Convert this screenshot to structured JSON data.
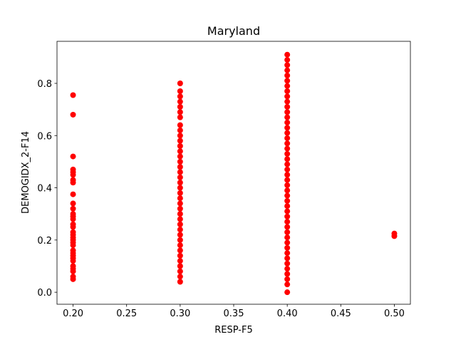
{
  "chart_data": {
    "type": "scatter",
    "title": "Maryland",
    "x_label": "RESP-F5",
    "y_label": "DEMOGIDX_2-F14",
    "color": "#ff0000",
    "x": [
      0.2,
      0.2,
      0.2,
      0.2,
      0.2,
      0.2,
      0.2,
      0.2,
      0.2,
      0.2,
      0.2,
      0.2,
      0.2,
      0.2,
      0.2,
      0.2,
      0.2,
      0.2,
      0.2,
      0.2,
      0.2,
      0.2,
      0.2,
      0.2,
      0.2,
      0.2,
      0.2,
      0.2,
      0.2,
      0.2,
      0.2,
      0.2,
      0.3,
      0.3,
      0.3,
      0.3,
      0.3,
      0.3,
      0.3,
      0.3,
      0.3,
      0.3,
      0.3,
      0.3,
      0.3,
      0.3,
      0.3,
      0.3,
      0.3,
      0.3,
      0.3,
      0.3,
      0.3,
      0.3,
      0.3,
      0.3,
      0.3,
      0.3,
      0.3,
      0.3,
      0.3,
      0.3,
      0.3,
      0.3,
      0.3,
      0.3,
      0.3,
      0.3,
      0.3,
      0.3,
      0.4,
      0.4,
      0.4,
      0.4,
      0.4,
      0.4,
      0.4,
      0.4,
      0.4,
      0.4,
      0.4,
      0.4,
      0.4,
      0.4,
      0.4,
      0.4,
      0.4,
      0.4,
      0.4,
      0.4,
      0.4,
      0.4,
      0.4,
      0.4,
      0.4,
      0.4,
      0.4,
      0.4,
      0.4,
      0.4,
      0.4,
      0.4,
      0.4,
      0.4,
      0.4,
      0.4,
      0.4,
      0.4,
      0.4,
      0.4,
      0.4,
      0.4,
      0.4,
      0.4,
      0.4,
      0.4,
      0.5,
      0.5
    ],
    "y": [
      0.755,
      0.68,
      0.52,
      0.47,
      0.46,
      0.45,
      0.43,
      0.42,
      0.375,
      0.34,
      0.32,
      0.3,
      0.29,
      0.28,
      0.26,
      0.25,
      0.23,
      0.22,
      0.21,
      0.2,
      0.19,
      0.18,
      0.16,
      0.15,
      0.14,
      0.13,
      0.12,
      0.1,
      0.09,
      0.08,
      0.06,
      0.05,
      0.8,
      0.77,
      0.75,
      0.73,
      0.71,
      0.69,
      0.67,
      0.64,
      0.62,
      0.6,
      0.58,
      0.56,
      0.54,
      0.52,
      0.5,
      0.48,
      0.46,
      0.44,
      0.42,
      0.4,
      0.38,
      0.36,
      0.34,
      0.32,
      0.3,
      0.28,
      0.26,
      0.24,
      0.22,
      0.2,
      0.18,
      0.16,
      0.14,
      0.12,
      0.1,
      0.08,
      0.06,
      0.04,
      0.91,
      0.89,
      0.87,
      0.85,
      0.83,
      0.81,
      0.79,
      0.77,
      0.75,
      0.73,
      0.71,
      0.69,
      0.67,
      0.65,
      0.63,
      0.61,
      0.59,
      0.57,
      0.55,
      0.53,
      0.51,
      0.49,
      0.47,
      0.45,
      0.43,
      0.41,
      0.39,
      0.37,
      0.35,
      0.33,
      0.31,
      0.29,
      0.27,
      0.25,
      0.23,
      0.21,
      0.19,
      0.17,
      0.15,
      0.13,
      0.11,
      0.09,
      0.07,
      0.05,
      0.03,
      0.0,
      0.225,
      0.215
    ],
    "xlim": [
      0.185,
      0.515
    ],
    "ylim": [
      -0.046,
      0.961
    ],
    "xticks": [
      {
        "value": 0.2,
        "label": "0.20"
      },
      {
        "value": 0.25,
        "label": "0.25"
      },
      {
        "value": 0.3,
        "label": "0.30"
      },
      {
        "value": 0.35,
        "label": "0.35"
      },
      {
        "value": 0.4,
        "label": "0.40"
      },
      {
        "value": 0.45,
        "label": "0.45"
      },
      {
        "value": 0.5,
        "label": "0.50"
      }
    ],
    "yticks": [
      {
        "value": 0,
        "label": "0.0"
      },
      {
        "value": 0.2,
        "label": "0.2"
      },
      {
        "value": 0.4,
        "label": "0.4"
      },
      {
        "value": 0.6,
        "label": "0.6"
      },
      {
        "value": 0.8,
        "label": "0.8"
      }
    ]
  }
}
